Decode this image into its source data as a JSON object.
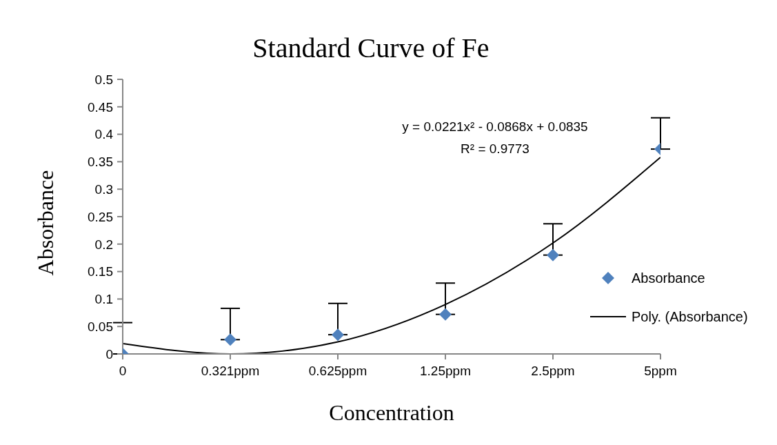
{
  "chart_data": {
    "type": "scatter",
    "title": "Standard Curve of Fe",
    "xlabel": "Concentration",
    "ylabel": "Absorbance",
    "categories": [
      "0",
      "0.321ppm",
      "0.625ppm",
      "1.25ppm",
      "2.5ppm",
      "5ppm"
    ],
    "ylim": [
      0,
      0.5
    ],
    "yticks": [
      0,
      0.05,
      0.1,
      0.15,
      0.2,
      0.25,
      0.3,
      0.35,
      0.4,
      0.45,
      0.5
    ],
    "series": [
      {
        "name": "Absorbance",
        "color": "#4f81bd",
        "values": [
          0,
          0.026,
          0.035,
          0.072,
          0.18,
          0.373
        ],
        "errors": [
          [
            0,
            0.057
          ],
          [
            0.026,
            0.083
          ],
          [
            0.035,
            0.092
          ],
          [
            0.072,
            0.129
          ],
          [
            0.18,
            0.237
          ],
          [
            0.373,
            0.43
          ]
        ]
      },
      {
        "name": "Poly. (Absorbance)",
        "type": "line",
        "color": "#000000",
        "line_style": "solid",
        "marker": "none",
        "values": [
          0.019,
          0,
          0.022,
          0.09,
          0.202,
          0.358
        ]
      }
    ],
    "marker": "diamond",
    "grid": false,
    "legend": "right",
    "annotations": [
      "y = 0.0221x² - 0.0868x + 0.0835",
      "R² = 0.9773"
    ]
  }
}
